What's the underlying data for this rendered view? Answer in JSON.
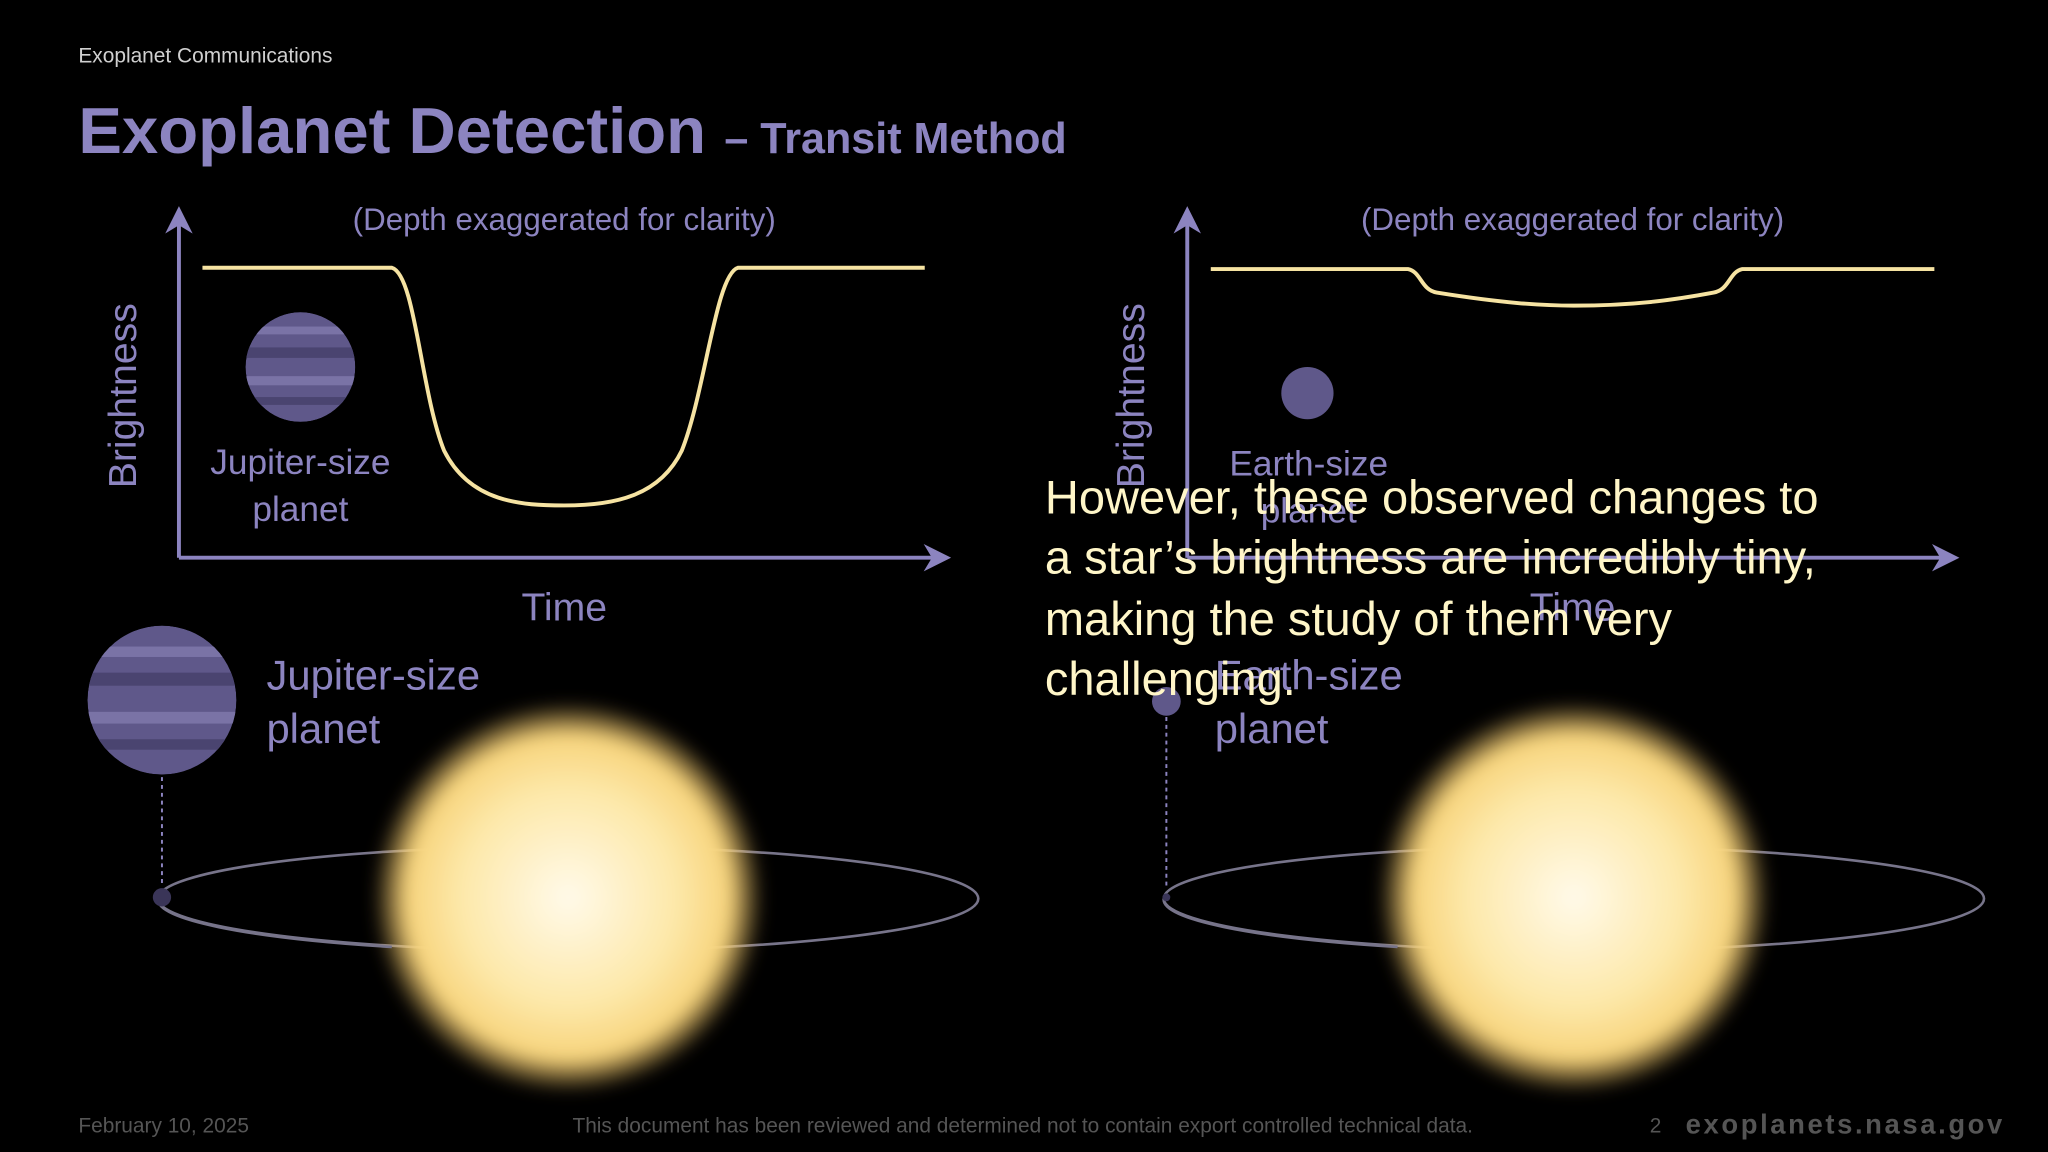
{
  "header": {
    "label": "Exoplanet Communications",
    "title": "Exoplanet Detection",
    "subtitle": "– Transit Method"
  },
  "panels": [
    {
      "caption": "(Depth exaggerated for clarity)",
      "y_axis_label": "Brightness",
      "x_axis_label": "Time",
      "plot_planet_label": [
        "Jupiter-size",
        "planet"
      ],
      "orbit_planet_label": [
        "Jupiter-size",
        "planet"
      ]
    },
    {
      "caption": "(Depth exaggerated for clarity)",
      "y_axis_label": "Brightness",
      "x_axis_label": "Time",
      "plot_planet_label": [
        "Earth-size",
        "planet"
      ],
      "orbit_planet_label": [
        "Earth-size",
        "planet"
      ]
    }
  ],
  "overlay_text": [
    "However, these observed changes to",
    "a star’s brightness are incredibly tiny,",
    "making the study of them very",
    "challenging."
  ],
  "footer": {
    "date": "February 10, 2025",
    "notice": "This document has been reviewed and determined not to contain export controlled technical data.",
    "page": "2",
    "site": "exoplanets.nasa.gov"
  }
}
